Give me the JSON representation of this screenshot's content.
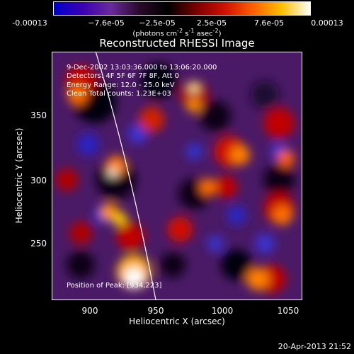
{
  "colorbar": {
    "ticks": [
      "-0.00013",
      "−7.6e-05",
      "−2.5e-05",
      "2.5e-05",
      "7.6e-05",
      "0.00013"
    ],
    "units_main": "(photons cm",
    "units_sup1": "-2",
    "units_mid": " s",
    "units_sup2": "-1",
    "units_end": " asec",
    "units_sup3": "-2",
    "units_close": ")",
    "colors": [
      "#0000cc",
      "#3a00b0",
      "#6a2a9a",
      "#2a0a2a",
      "#000000",
      "#7a0000",
      "#d01000",
      "#ff6000",
      "#ffc000",
      "#ffffff"
    ]
  },
  "title": "Reconstructed RHESSI Image",
  "overlay": {
    "line1": "9-Dec-2002 13:03:36.000 to 13:06:20.000",
    "line2": "Detectors: 4F 5F 6F 7F 8F, Att 0",
    "line3": "Energy Range: 12.0 - 25.0 keV",
    "line4": "Clean    Total counts: 1.23E+03",
    "position_label": "Position of Peak: [934,223]"
  },
  "axes": {
    "xlabel": "Heliocentric X (arcsec)",
    "ylabel": "Heliocentric Y (arcsec)",
    "xlim": [
      870,
      1060
    ],
    "ylim": [
      203,
      392
    ],
    "x_ticks": [
      900,
      950,
      1000,
      1050
    ],
    "y_ticks": [
      250,
      300,
      350
    ]
  },
  "footer": {
    "timestamp": "20-Apr-2013 21:52"
  }
}
